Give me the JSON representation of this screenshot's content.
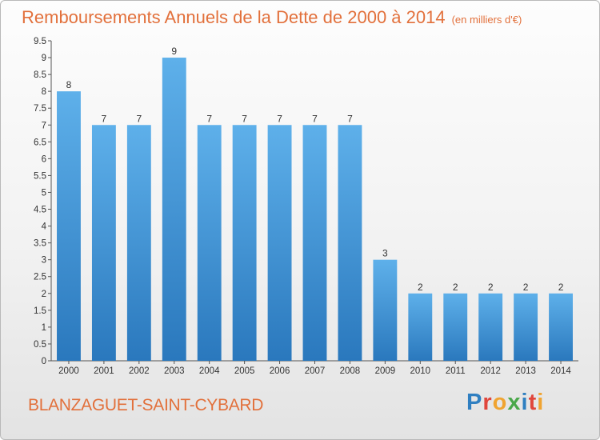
{
  "header": {
    "title": "Remboursements Annuels de la Dette de 2000 à 2014",
    "unit": "(en milliers d'€)"
  },
  "footer": {
    "commune": "BLANZAGUET-SAINT-CYBARD",
    "logo_letters": [
      {
        "char": "P",
        "color": "#2f7fc1"
      },
      {
        "char": "r",
        "color": "#e0463c"
      },
      {
        "char": "o",
        "color": "#f0a431"
      },
      {
        "char": "x",
        "color": "#4aa84a"
      },
      {
        "char": "i",
        "color": "#2f7fc1"
      },
      {
        "char": "t",
        "color": "#e0463c"
      },
      {
        "char": "i",
        "color": "#f0a431"
      }
    ]
  },
  "chart_data": {
    "type": "bar",
    "title": "Remboursements Annuels de la Dette de 2000 à 2014",
    "categories": [
      "2000",
      "2001",
      "2002",
      "2003",
      "2004",
      "2005",
      "2006",
      "2007",
      "2008",
      "2009",
      "2010",
      "2011",
      "2012",
      "2013",
      "2014"
    ],
    "values": [
      8,
      7,
      7,
      9,
      7,
      7,
      7,
      7,
      7,
      3,
      2,
      2,
      2,
      2,
      2
    ],
    "ylim": [
      0,
      9.5
    ],
    "yticks": [
      "0",
      "0.5",
      "1",
      "1.5",
      "2",
      "2.5",
      "3",
      "3.5",
      "4",
      "4.5",
      "5",
      "5.5",
      "6",
      "6.5",
      "7",
      "7.5",
      "8",
      "8.5",
      "9",
      "9.5"
    ],
    "grid": false,
    "bar_color_top": "#5eb0ea",
    "bar_color_bottom": "#2a78bd"
  }
}
